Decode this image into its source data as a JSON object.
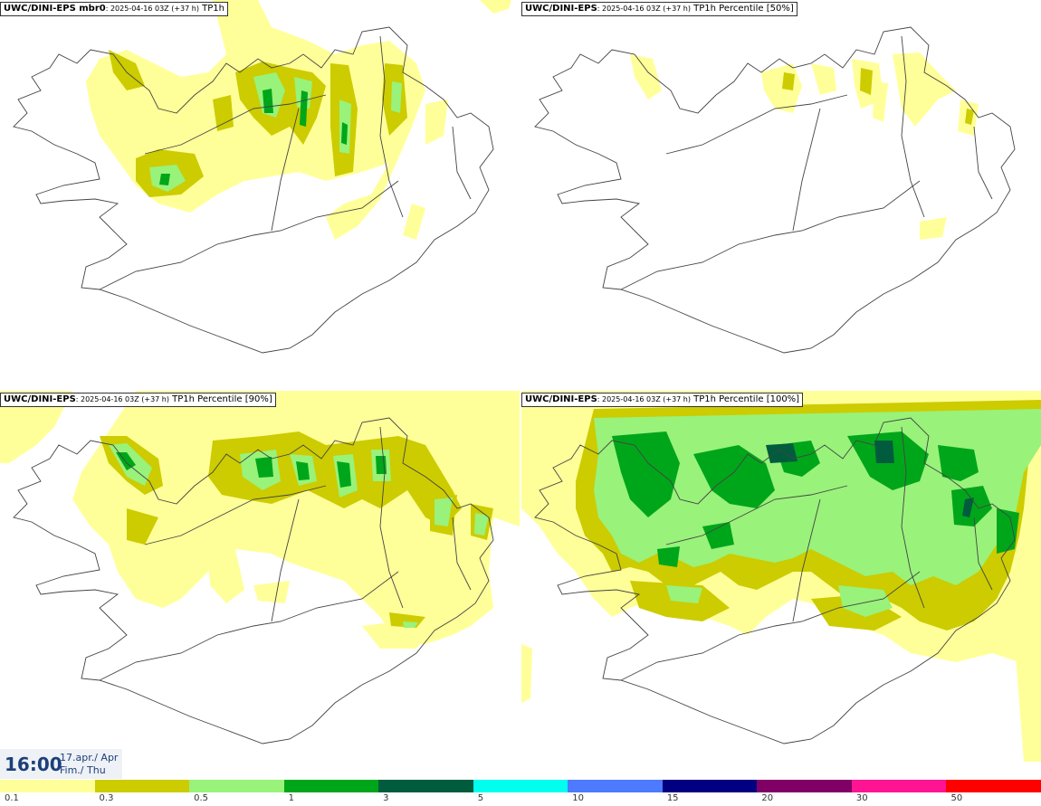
{
  "panels": [
    {
      "model": "UWC/DINI-EPS mbr0",
      "run": ": 2025-04-16 03Z (+37 h)",
      "field": " TP1h"
    },
    {
      "model": "UWC/DINI-EPS",
      "run": ": 2025-04-16 03Z (+37 h)",
      "field": " TP1h Percentile [50%]"
    },
    {
      "model": "UWC/DINI-EPS",
      "run": ": 2025-04-16 03Z (+37 h)",
      "field": " TP1h Percentile [90%]"
    },
    {
      "model": "UWC/DINI-EPS",
      "run": ": 2025-04-16 03Z (+37 h)",
      "field": " TP1h Percentile [100%]"
    }
  ],
  "valid_time": {
    "time": "16:00",
    "date_line1": "17.apr./ Apr",
    "date_line2": "Fim./ Thu"
  },
  "legend": {
    "bins": [
      {
        "label": "0.1",
        "color": "#ffff99"
      },
      {
        "label": "0.3",
        "color": "#cccc00"
      },
      {
        "label": "0.5",
        "color": "#99f27a"
      },
      {
        "label": "1",
        "color": "#00a61a"
      },
      {
        "label": "3",
        "color": "#005c3d"
      },
      {
        "label": "5",
        "color": "#00ffee"
      },
      {
        "label": "10",
        "color": "#4d7aff"
      },
      {
        "label": "15",
        "color": "#000080"
      },
      {
        "label": "20",
        "color": "#800066"
      },
      {
        "label": "30",
        "color": "#ff1493"
      },
      {
        "label": "50",
        "color": "#ff0000"
      }
    ]
  },
  "colors": {
    "p01": "#ffff99",
    "p03": "#cccc00",
    "p05": "#99f27a",
    "p1": "#00a61a",
    "p3": "#005c3d",
    "coast": "#444444"
  }
}
